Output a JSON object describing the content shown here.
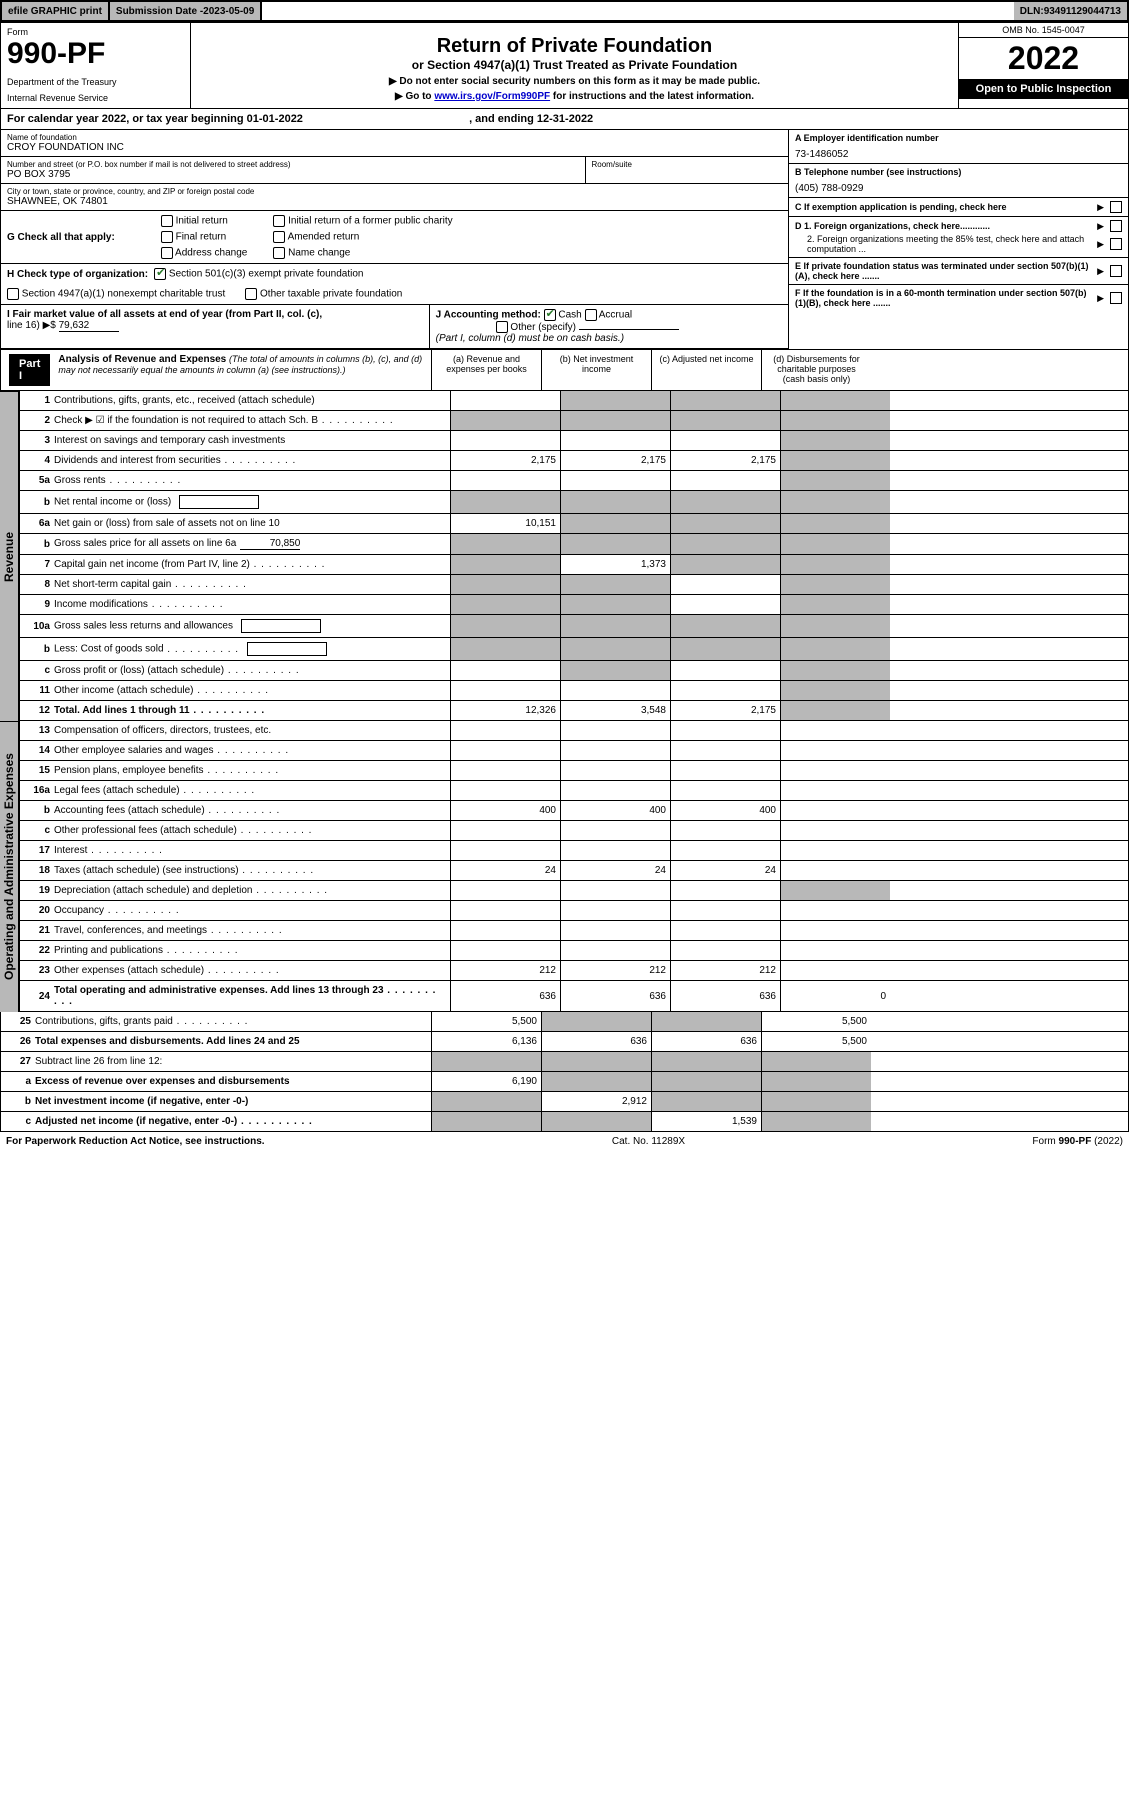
{
  "topbar": {
    "print": "efile GRAPHIC print",
    "subdate_label": "Submission Date - ",
    "subdate": "2023-05-09",
    "dln_label": "DLN: ",
    "dln": "93491129044713"
  },
  "header": {
    "form": "Form",
    "formno": "990-PF",
    "dept1": "Department of the Treasury",
    "dept2": "Internal Revenue Service",
    "title": "Return of Private Foundation",
    "sub": "or Section 4947(a)(1) Trust Treated as Private Foundation",
    "note1": "▶ Do not enter social security numbers on this form as it may be made public.",
    "note2_pre": "▶ Go to ",
    "note2_link": "www.irs.gov/Form990PF",
    "note2_post": " for instructions and the latest information.",
    "omb": "OMB No. 1545-0047",
    "year": "2022",
    "open": "Open to Public Inspection"
  },
  "calyear": {
    "pre": "For calendar year 2022, or tax year beginning ",
    "begin": "01-01-2022",
    "mid": ", and ending ",
    "end": "12-31-2022"
  },
  "info": {
    "name_lbl": "Name of foundation",
    "name": "CROY FOUNDATION INC",
    "addr_lbl": "Number and street (or P.O. box number if mail is not delivered to street address)",
    "room_lbl": "Room/suite",
    "addr": "PO BOX 3795",
    "city_lbl": "City or town, state or province, country, and ZIP or foreign postal code",
    "city": "SHAWNEE, OK  74801",
    "ein_lbl": "A Employer identification number",
    "ein": "73-1486052",
    "tel_lbl": "B Telephone number (see instructions)",
    "tel": "(405) 788-0929",
    "c_lbl": "C If exemption application is pending, check here",
    "d1": "D 1. Foreign organizations, check here............",
    "d2": "2. Foreign organizations meeting the 85% test, check here and attach computation ...",
    "e_lbl": "E  If private foundation status was terminated under section 507(b)(1)(A), check here .......",
    "f_lbl": "F  If the foundation is in a 60-month termination under section 507(b)(1)(B), check here .......",
    "g_lbl": "G Check all that apply:",
    "g_opts": [
      "Initial return",
      "Initial return of a former public charity",
      "Final return",
      "Amended return",
      "Address change",
      "Name change"
    ],
    "h_lbl": "H Check type of organization:",
    "h_opts": [
      "Section 501(c)(3) exempt private foundation",
      "Section 4947(a)(1) nonexempt charitable trust",
      "Other taxable private foundation"
    ],
    "i_lbl": "I Fair market value of all assets at end of year (from Part II, col. (c),",
    "i_line": "line 16) ▶$ ",
    "i_val": "79,632",
    "j_lbl": "J Accounting method:",
    "j_opts": [
      "Cash",
      "Accrual",
      "Other (specify)"
    ],
    "j_note": "(Part I, column (d) must be on cash basis.)"
  },
  "part1": {
    "label": "Part I",
    "title": "Analysis of Revenue and Expenses",
    "title_note": "(The total of amounts in columns (b), (c), and (d) may not necessarily equal the amounts in column (a) (see instructions).)",
    "cols": [
      "(a)  Revenue and expenses per books",
      "(b)  Net investment income",
      "(c)  Adjusted net income",
      "(d)  Disbursements for charitable purposes (cash basis only)"
    ],
    "side_rev": "Revenue",
    "side_exp": "Operating and Administrative Expenses"
  },
  "rows": [
    {
      "n": "1",
      "t": "Contributions, gifts, grants, etc., received (attach schedule)",
      "a": "",
      "b": "s",
      "c": "s",
      "d": "s"
    },
    {
      "n": "2",
      "t": "Check ▶ ☑ if the foundation is not required to attach Sch. B",
      "dots": true,
      "a": "s",
      "b": "s",
      "c": "s",
      "d": "s"
    },
    {
      "n": "3",
      "t": "Interest on savings and temporary cash investments",
      "a": "",
      "b": "",
      "c": "",
      "d": "s"
    },
    {
      "n": "4",
      "t": "Dividends and interest from securities",
      "dots": true,
      "a": "2,175",
      "b": "2,175",
      "c": "2,175",
      "d": "s"
    },
    {
      "n": "5a",
      "t": "Gross rents",
      "dots": true,
      "a": "",
      "b": "",
      "c": "",
      "d": "s"
    },
    {
      "n": "b",
      "t": "Net rental income or (loss)",
      "box": true,
      "a": "s",
      "b": "s",
      "c": "s",
      "d": "s"
    },
    {
      "n": "6a",
      "t": "Net gain or (loss) from sale of assets not on line 10",
      "a": "10,151",
      "b": "s",
      "c": "s",
      "d": "s"
    },
    {
      "n": "b",
      "t": "Gross sales price for all assets on line 6a",
      "inline": "70,850",
      "a": "s",
      "b": "s",
      "c": "s",
      "d": "s"
    },
    {
      "n": "7",
      "t": "Capital gain net income (from Part IV, line 2)",
      "dots": true,
      "a": "s",
      "b": "1,373",
      "c": "s",
      "d": "s"
    },
    {
      "n": "8",
      "t": "Net short-term capital gain",
      "dots": true,
      "a": "s",
      "b": "s",
      "c": "",
      "d": "s"
    },
    {
      "n": "9",
      "t": "Income modifications",
      "dots": true,
      "a": "s",
      "b": "s",
      "c": "",
      "d": "s"
    },
    {
      "n": "10a",
      "t": "Gross sales less returns and allowances",
      "box": true,
      "a": "s",
      "b": "s",
      "c": "s",
      "d": "s"
    },
    {
      "n": "b",
      "t": "Less: Cost of goods sold",
      "dots": true,
      "box": true,
      "a": "s",
      "b": "s",
      "c": "s",
      "d": "s"
    },
    {
      "n": "c",
      "t": "Gross profit or (loss) (attach schedule)",
      "dots": true,
      "a": "",
      "b": "s",
      "c": "",
      "d": "s"
    },
    {
      "n": "11",
      "t": "Other income (attach schedule)",
      "dots": true,
      "a": "",
      "b": "",
      "c": "",
      "d": "s"
    },
    {
      "n": "12",
      "t": "Total. Add lines 1 through 11",
      "bold": true,
      "dots": true,
      "a": "12,326",
      "b": "3,548",
      "c": "2,175",
      "d": "s"
    },
    {
      "n": "13",
      "t": "Compensation of officers, directors, trustees, etc.",
      "a": "",
      "b": "",
      "c": "",
      "d": ""
    },
    {
      "n": "14",
      "t": "Other employee salaries and wages",
      "dots": true,
      "a": "",
      "b": "",
      "c": "",
      "d": ""
    },
    {
      "n": "15",
      "t": "Pension plans, employee benefits",
      "dots": true,
      "a": "",
      "b": "",
      "c": "",
      "d": ""
    },
    {
      "n": "16a",
      "t": "Legal fees (attach schedule)",
      "dots": true,
      "a": "",
      "b": "",
      "c": "",
      "d": ""
    },
    {
      "n": "b",
      "t": "Accounting fees (attach schedule)",
      "dots": true,
      "a": "400",
      "b": "400",
      "c": "400",
      "d": ""
    },
    {
      "n": "c",
      "t": "Other professional fees (attach schedule)",
      "dots": true,
      "a": "",
      "b": "",
      "c": "",
      "d": ""
    },
    {
      "n": "17",
      "t": "Interest",
      "dots": true,
      "a": "",
      "b": "",
      "c": "",
      "d": ""
    },
    {
      "n": "18",
      "t": "Taxes (attach schedule) (see instructions)",
      "dots": true,
      "a": "24",
      "b": "24",
      "c": "24",
      "d": ""
    },
    {
      "n": "19",
      "t": "Depreciation (attach schedule) and depletion",
      "dots": true,
      "a": "",
      "b": "",
      "c": "",
      "d": "s"
    },
    {
      "n": "20",
      "t": "Occupancy",
      "dots": true,
      "a": "",
      "b": "",
      "c": "",
      "d": ""
    },
    {
      "n": "21",
      "t": "Travel, conferences, and meetings",
      "dots": true,
      "a": "",
      "b": "",
      "c": "",
      "d": ""
    },
    {
      "n": "22",
      "t": "Printing and publications",
      "dots": true,
      "a": "",
      "b": "",
      "c": "",
      "d": ""
    },
    {
      "n": "23",
      "t": "Other expenses (attach schedule)",
      "dots": true,
      "a": "212",
      "b": "212",
      "c": "212",
      "d": ""
    },
    {
      "n": "24",
      "t": "Total operating and administrative expenses. Add lines 13 through 23",
      "bold": true,
      "dots": true,
      "a": "636",
      "b": "636",
      "c": "636",
      "d": "0"
    },
    {
      "n": "25",
      "t": "Contributions, gifts, grants paid",
      "dots": true,
      "a": "5,500",
      "b": "s",
      "c": "s",
      "d": "5,500"
    },
    {
      "n": "26",
      "t": "Total expenses and disbursements. Add lines 24 and 25",
      "bold": true,
      "a": "6,136",
      "b": "636",
      "c": "636",
      "d": "5,500"
    },
    {
      "n": "27",
      "t": "Subtract line 26 from line 12:",
      "a": "s",
      "b": "s",
      "c": "s",
      "d": "s"
    },
    {
      "n": "a",
      "t": "Excess of revenue over expenses and disbursements",
      "bold": true,
      "a": "6,190",
      "b": "s",
      "c": "s",
      "d": "s"
    },
    {
      "n": "b",
      "t": "Net investment income (if negative, enter -0-)",
      "bold": true,
      "a": "s",
      "b": "2,912",
      "c": "s",
      "d": "s"
    },
    {
      "n": "c",
      "t": "Adjusted net income (if negative, enter -0-)",
      "bold": true,
      "dots": true,
      "a": "s",
      "b": "s",
      "c": "1,539",
      "d": "s"
    }
  ],
  "footer": {
    "left": "For Paperwork Reduction Act Notice, see instructions.",
    "mid": "Cat. No. 11289X",
    "right": "Form 990-PF (2022)"
  }
}
